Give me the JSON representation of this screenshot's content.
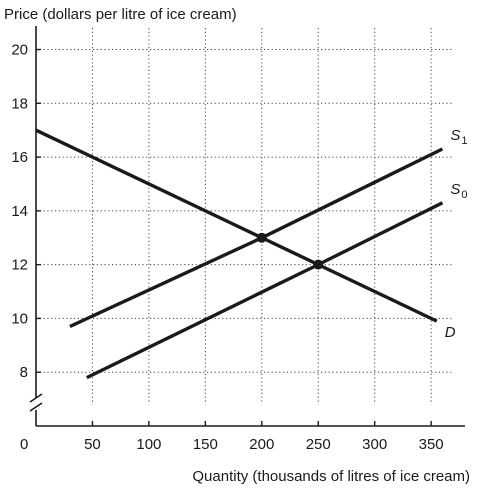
{
  "chart_data": {
    "type": "line",
    "ylabel": "Price (dollars per litre of ice cream)",
    "xlabel": "Quantity (thousands of litres of ice cream)",
    "xlim": [
      0,
      380
    ],
    "ylim": [
      6,
      20.8
    ],
    "origin_label": "0",
    "x_ticks": [
      50,
      100,
      150,
      200,
      250,
      300,
      350
    ],
    "y_ticks": [
      8,
      10,
      12,
      14,
      16,
      18,
      20
    ],
    "y_axis_break": true,
    "grid": true,
    "series": [
      {
        "name": "D",
        "label_main": "D",
        "label_sub": "",
        "color": "#1a1a1a",
        "x": [
          0,
          250,
          355
        ],
        "y": [
          17,
          12,
          9.9
        ]
      },
      {
        "name": "S1",
        "label_main": "S",
        "label_sub": "1",
        "color": "#1a1a1a",
        "x": [
          30,
          200,
          360
        ],
        "y": [
          9.7,
          13,
          16.3
        ]
      },
      {
        "name": "S0",
        "label_main": "S",
        "label_sub": "0",
        "color": "#1a1a1a",
        "x": [
          45,
          250,
          360
        ],
        "y": [
          7.8,
          12,
          14.3
        ]
      }
    ],
    "points": [
      {
        "x": 200,
        "y": 13
      },
      {
        "x": 250,
        "y": 12
      }
    ]
  }
}
